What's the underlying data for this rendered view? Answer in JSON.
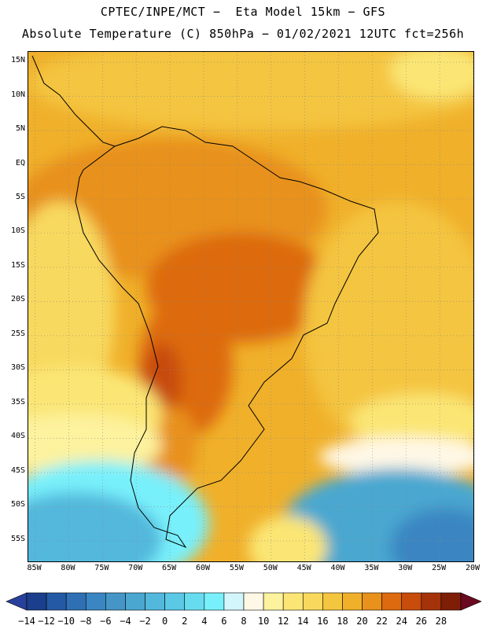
{
  "header": {
    "line1": "CPTEC/INPE/MCT −  Eta Model 15km − GFS",
    "line2": "Absolute Temperature (C) 850hPa − 01/02/2021 12UTC fct=256h"
  },
  "map": {
    "variable": "Absolute Temperature (C)",
    "level": "850hPa",
    "lat_ticks": [
      "15N",
      "10N",
      "5N",
      "EQ",
      "5S",
      "10S",
      "15S",
      "20S",
      "25S",
      "30S",
      "35S",
      "40S",
      "45S",
      "50S",
      "55S"
    ],
    "lon_ticks": [
      "85W",
      "80W",
      "75W",
      "70W",
      "65W",
      "60W",
      "55W",
      "50W",
      "45W",
      "40W",
      "35W",
      "30W",
      "25W",
      "20W"
    ],
    "lat_range": [
      -58,
      16.5
    ],
    "lon_range": [
      -86,
      -20
    ]
  },
  "colorbar": {
    "labels": [
      "−14",
      "−12",
      "−10",
      "−8",
      "−6",
      "−4",
      "−2",
      "0",
      "2",
      "4",
      "6",
      "8",
      "10",
      "12",
      "14",
      "16",
      "18",
      "20",
      "22",
      "24",
      "26",
      "28"
    ],
    "colors": [
      "#1b3f8c",
      "#245aa5",
      "#2f70b5",
      "#3a86c2",
      "#4596c6",
      "#4aa7d0",
      "#52b8dc",
      "#5ac9e6",
      "#68dcef",
      "#78f0fb",
      "#d3f6fc",
      "#fff8e6",
      "#fdf29e",
      "#fbe675",
      "#f8d95e",
      "#f4c53f",
      "#f0b02a",
      "#e8911b",
      "#dd6a0f",
      "#c84c0b",
      "#a4330a",
      "#7f1e06"
    ],
    "under_color": "#29409a",
    "over_color": "#6a0a20"
  }
}
